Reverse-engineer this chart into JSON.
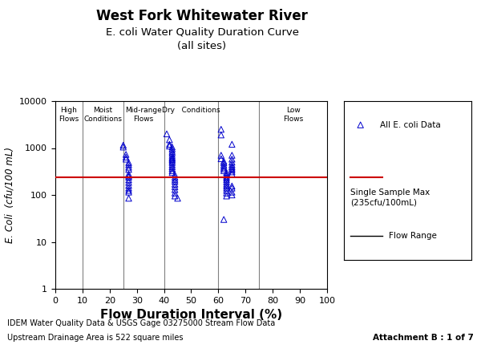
{
  "title1": "West Fork Whitewater River",
  "title2": "E. coli Water Quality Duration Curve\n(all sites)",
  "xlabel": "Flow Duration Interval (%)",
  "ylabel": "E. Coli  (cfu/100 mL)",
  "single_sample_max": 235,
  "xlim": [
    0,
    100
  ],
  "ylim_log": [
    1,
    10000
  ],
  "xticks": [
    0,
    10,
    20,
    30,
    40,
    50,
    60,
    70,
    80,
    90,
    100
  ],
  "yticks": [
    1,
    10,
    100,
    1000,
    10000
  ],
  "ytick_labels": [
    "1",
    "10",
    "100",
    "1000",
    "10000"
  ],
  "vertical_lines": [
    10,
    25,
    40,
    60,
    75
  ],
  "region_labels": [
    {
      "x": 5,
      "label": "High\nFlows"
    },
    {
      "x": 17.5,
      "label": "Moist\nConditions"
    },
    {
      "x": 32.5,
      "label": "Mid-range\nFlows"
    },
    {
      "x": 50,
      "label": "Dry   Conditions"
    },
    {
      "x": 87.5,
      "label": "Low\nFlows"
    }
  ],
  "footnote1": "IDEM Water Quality Data & USGS Gage 03275000 Stream Flow Data",
  "footnote2": "Upstream Drainage Area is 522 square miles",
  "attachment": "Attachment B : 1 of 7",
  "data_moist": [
    [
      25,
      1150
    ],
    [
      25,
      1050
    ],
    [
      26,
      730
    ],
    [
      26,
      640
    ],
    [
      26,
      580
    ],
    [
      27,
      490
    ],
    [
      27,
      440
    ],
    [
      27,
      390
    ],
    [
      27,
      350
    ],
    [
      27,
      280
    ],
    [
      27,
      255
    ],
    [
      27,
      240
    ],
    [
      27,
      210
    ],
    [
      27,
      185
    ],
    [
      27,
      160
    ],
    [
      27,
      140
    ],
    [
      27,
      125
    ],
    [
      27,
      115
    ],
    [
      27,
      85
    ]
  ],
  "data_midrange": [
    [
      41,
      2000
    ],
    [
      42,
      1500
    ],
    [
      42,
      1200
    ],
    [
      42,
      1100
    ],
    [
      43,
      1050
    ],
    [
      43,
      950
    ],
    [
      43,
      850
    ],
    [
      43,
      780
    ],
    [
      43,
      700
    ],
    [
      43,
      640
    ],
    [
      43,
      600
    ],
    [
      43,
      570
    ],
    [
      43,
      530
    ],
    [
      43,
      490
    ],
    [
      43,
      440
    ],
    [
      43,
      400
    ],
    [
      43,
      365
    ],
    [
      43,
      330
    ],
    [
      43,
      300
    ],
    [
      44,
      270
    ],
    [
      44,
      240
    ],
    [
      44,
      215
    ],
    [
      44,
      195
    ],
    [
      44,
      170
    ],
    [
      44,
      150
    ],
    [
      44,
      130
    ],
    [
      44,
      110
    ],
    [
      44,
      95
    ],
    [
      45,
      85
    ]
  ],
  "data_dry": [
    [
      61,
      2500
    ],
    [
      61,
      1900
    ],
    [
      61,
      700
    ],
    [
      61,
      590
    ],
    [
      62,
      520
    ],
    [
      62,
      480
    ],
    [
      62,
      430
    ],
    [
      62,
      390
    ],
    [
      62,
      360
    ],
    [
      62,
      330
    ],
    [
      63,
      300
    ],
    [
      63,
      270
    ],
    [
      63,
      250
    ],
    [
      63,
      230
    ],
    [
      63,
      210
    ],
    [
      63,
      190
    ],
    [
      63,
      170
    ],
    [
      63,
      155
    ],
    [
      63,
      140
    ],
    [
      63,
      125
    ],
    [
      63,
      110
    ],
    [
      63,
      95
    ],
    [
      65,
      1200
    ],
    [
      65,
      700
    ],
    [
      65,
      580
    ],
    [
      65,
      500
    ],
    [
      65,
      440
    ],
    [
      65,
      400
    ],
    [
      65,
      370
    ],
    [
      65,
      340
    ],
    [
      65,
      310
    ],
    [
      65,
      280
    ],
    [
      65,
      155
    ],
    [
      65,
      140
    ],
    [
      65,
      115
    ],
    [
      65,
      100
    ],
    [
      62,
      30
    ]
  ],
  "marker_color": "#0000CC",
  "line_color": "#CC0000",
  "vline_color": "#808080",
  "bg_color": "#ffffff"
}
